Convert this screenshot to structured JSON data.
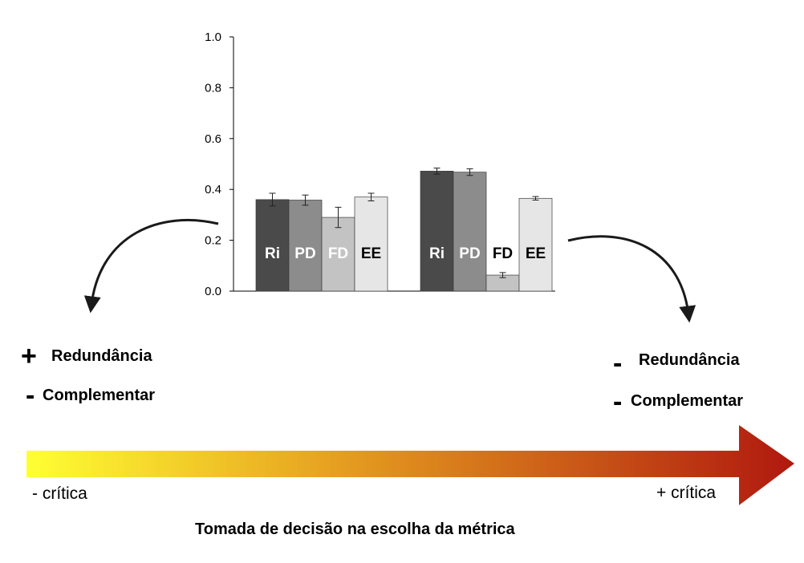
{
  "chart_data": {
    "type": "bar",
    "groups": [
      {
        "bars": [
          {
            "label": "Ri",
            "value": 0.36,
            "err": 0.025,
            "fill": "#4a4a4a",
            "label_color": "#ffffff"
          },
          {
            "label": "PD",
            "value": 0.358,
            "err": 0.02,
            "fill": "#8c8c8c",
            "label_color": "#ffffff"
          },
          {
            "label": "FD",
            "value": 0.29,
            "err": 0.04,
            "fill": "#c3c3c3",
            "label_color": "#ffffff"
          },
          {
            "label": "EE",
            "value": 0.37,
            "err": 0.015,
            "fill": "#e6e6e6",
            "label_color": "#000000"
          }
        ]
      },
      {
        "bars": [
          {
            "label": "Ri",
            "value": 0.472,
            "err": 0.012,
            "fill": "#4a4a4a",
            "label_color": "#ffffff"
          },
          {
            "label": "PD",
            "value": 0.468,
            "err": 0.013,
            "fill": "#8c8c8c",
            "label_color": "#ffffff"
          },
          {
            "label": "FD",
            "value": 0.063,
            "err": 0.01,
            "fill": "#c3c3c3",
            "label_color": "#000000"
          },
          {
            "label": "EE",
            "value": 0.365,
            "err": 0.007,
            "fill": "#e6e6e6",
            "label_color": "#000000"
          }
        ]
      }
    ],
    "ylim": [
      0,
      1.0
    ],
    "yticks": [
      "0.0",
      "0.2",
      "0.4",
      "0.6",
      "0.8",
      "1.0"
    ],
    "title": "",
    "xlabel": "",
    "ylabel": ""
  },
  "left_side": {
    "symbol1": "+",
    "text1": "Redundância",
    "symbol2": "-",
    "text2": "Complementar"
  },
  "right_side": {
    "symbol1": "-",
    "text1": "Redundância",
    "symbol2": "-",
    "text2": "Complementar"
  },
  "scale": {
    "left_label": "- crítica",
    "right_label": "+ crítica",
    "color_start": "#ffff33",
    "color_mid": "#e6a020",
    "color_end": "#b0180f"
  },
  "caption": "Tomada de decisão na escolha da métrica"
}
